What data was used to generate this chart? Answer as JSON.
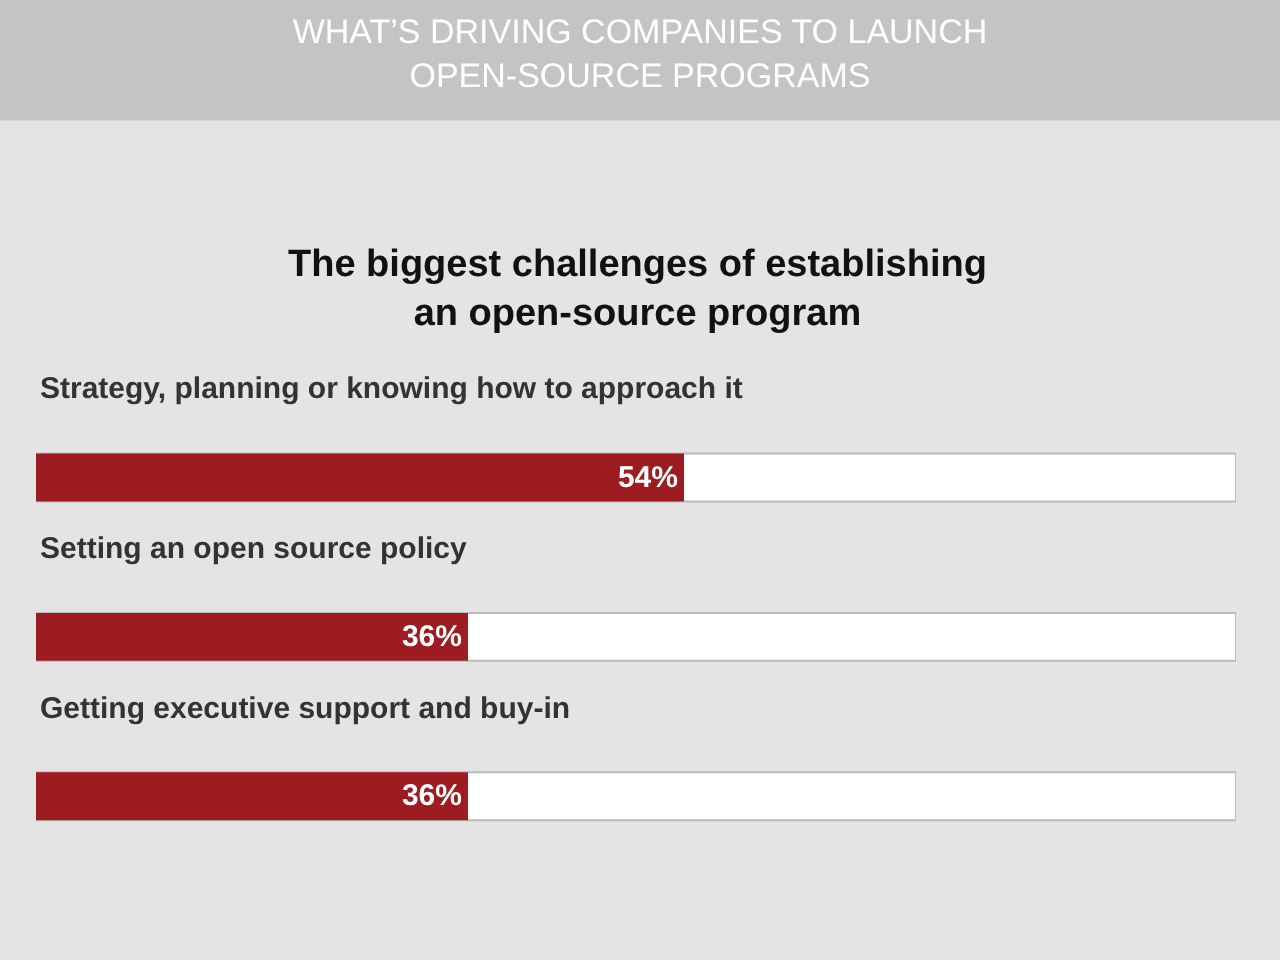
{
  "chart_data": {
    "type": "bar",
    "orientation": "horizontal",
    "title": "WHAT’S DRIVING COMPANIES TO LAUNCH OPEN-SOURCE PROGRAMS",
    "subtitle": "The biggest challenges of establishing an open-source program",
    "categories": [
      "Strategy, planning or knowing how to approach it",
      "Setting an open source policy",
      "Getting executive support and buy-in"
    ],
    "values": [
      54,
      36,
      36
    ],
    "value_labels": [
      "54%",
      "36%",
      "36%"
    ],
    "color": "#9c1c22",
    "xlim": [
      0,
      100
    ],
    "grid": false
  }
}
